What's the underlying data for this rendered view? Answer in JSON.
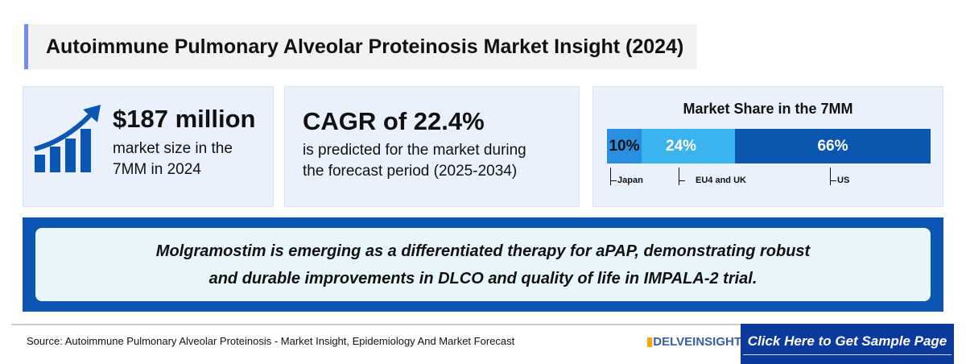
{
  "title": "Autoimmune Pulmonary Alveolar Proteinosis Market Insight (2024)",
  "market_size": {
    "value": "$187 million",
    "desc_line1": "market size in the",
    "desc_line2": "7MM in 2024"
  },
  "cagr": {
    "value": "CAGR of 22.4%",
    "desc_line1": "is predicted for the market during",
    "desc_line2": "the forecast period (2025-2034)"
  },
  "chart_data": {
    "type": "bar",
    "title": "Market Share in the 7MM",
    "categories": [
      "Japan",
      "EU4 and UK",
      "US"
    ],
    "values": [
      10,
      24,
      66
    ],
    "value_labels": [
      "10%",
      "24%",
      "66%"
    ],
    "colors": [
      "#2a8fe0",
      "#3bb3ee",
      "#0a56b0"
    ]
  },
  "banner": {
    "line1": "Molgramostim is emerging as a differentiated therapy for aPAP, demonstrating robust",
    "line2": "and durable improvements in DLCO and quality of life in IMPALA-2 trial."
  },
  "footer": {
    "source": "Source: Autoimmune Pulmonary Alveolar Proteinosis  - Market Insight, Epidemiology And Market Forecast",
    "logo": "DELVEINSIGHT",
    "cta": "Click Here to Get Sample Page"
  }
}
